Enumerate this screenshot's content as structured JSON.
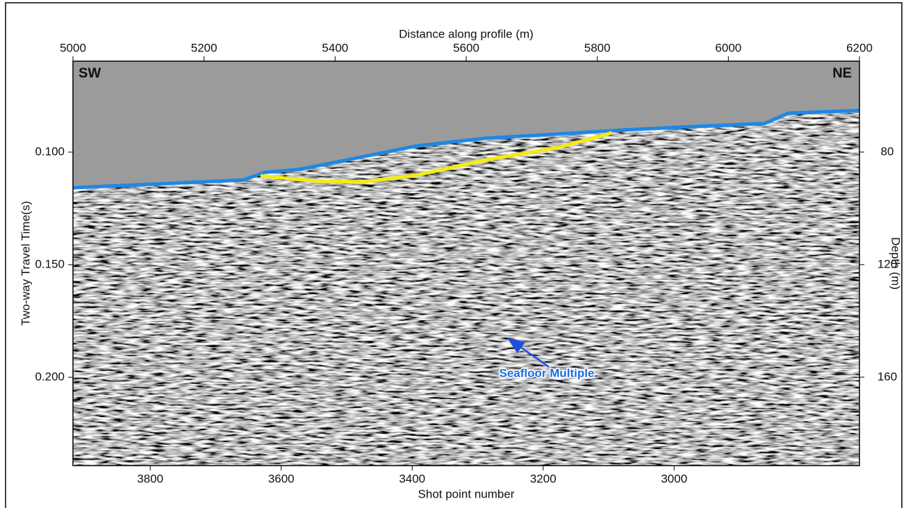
{
  "chart_data": {
    "type": "seismic",
    "xlabel": "Distance along profile (m)",
    "x2label": "Shot point number",
    "ylabel": "Two-way Travel Time(s)",
    "y2label": "Depth (m)",
    "xlim": [
      5000,
      6200
    ],
    "xticks": [
      5000,
      5200,
      5400,
      5600,
      5800,
      6000,
      6200
    ],
    "x2lim": [
      3918,
      2717
    ],
    "x2ticks": [
      3800,
      3600,
      3400,
      3200,
      3000
    ],
    "ylim": [
      0.0596,
      0.2392
    ],
    "yticks": [
      {
        "value": 0.1,
        "label": "0.100"
      },
      {
        "value": 0.15,
        "label": "0.150"
      },
      {
        "value": 0.2,
        "label": "0.200"
      }
    ],
    "y2lim": [
      47.7,
      191.4
    ],
    "y2ticks": [
      80,
      120,
      160
    ],
    "series": [
      {
        "color": "#1e88e5",
        "x": [
          5000,
          5260,
          5292,
          5345,
          5419,
          5525,
          5631,
          5737,
          5843,
          5949,
          6055,
          6092,
          6200
        ],
        "values": [
          0.1158,
          0.1124,
          0.109,
          0.1077,
          0.1034,
          0.0972,
          0.0938,
          0.092,
          0.0901,
          0.0886,
          0.0873,
          0.0827,
          0.0815
        ]
      },
      {
        "color": "#f5ea14",
        "x": [
          5286,
          5366,
          5440,
          5525,
          5631,
          5737,
          5790,
          5822
        ],
        "values": [
          0.1105,
          0.1127,
          0.1133,
          0.1102,
          0.1034,
          0.0981,
          0.0941,
          0.0914
        ]
      }
    ],
    "annotations": {
      "left": "SW",
      "right": "NE",
      "multiple": "Seafloor Multiple"
    }
  }
}
